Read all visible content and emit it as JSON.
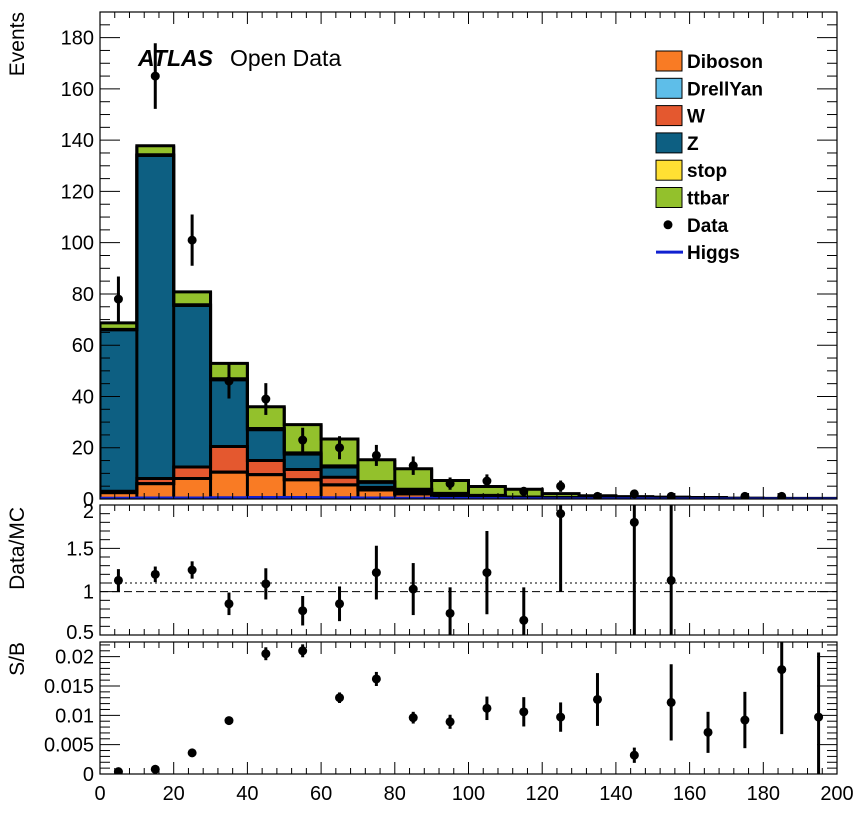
{
  "chart_data": [
    {
      "type": "bar",
      "stacked": true,
      "xlim": [
        0,
        200
      ],
      "ylim": [
        0,
        190
      ],
      "ylabel": "Events",
      "label_brand": "ATLAS",
      "label_text": "Open Data",
      "bin_width": 10,
      "bin_edges": [
        0,
        10,
        20,
        30,
        40,
        50,
        60,
        70,
        80,
        90,
        100,
        110,
        120,
        130,
        140,
        150,
        160,
        170,
        180,
        190,
        200
      ],
      "colors": {
        "Diboson": "#f97b24",
        "DrellYan": "#5ebee9",
        "W": "#e4582f",
        "Z": "#0d5f82",
        "stop": "#ffe033",
        "ttbar": "#93c12c",
        "Data": "#000000",
        "Higgs": "#1020d0"
      },
      "legend_placement": "top-right",
      "legend": [
        "Diboson",
        "DrellYan",
        "W",
        "Z",
        "stop",
        "ttbar",
        "Data",
        "Higgs"
      ],
      "series": [
        {
          "name": "Diboson",
          "values": [
            2.5,
            6,
            8,
            10.5,
            9.5,
            7.5,
            5.5,
            3.5,
            2,
            1.2,
            0.8,
            0.5,
            0.3,
            0.2,
            0.1,
            0.1,
            0.05,
            0.05,
            0.02,
            0.02
          ]
        },
        {
          "name": "DrellYan",
          "values": [
            0,
            0,
            0,
            0,
            0,
            0,
            0,
            0,
            0,
            0,
            0,
            0,
            0,
            0,
            0,
            0,
            0,
            0,
            0,
            0
          ]
        },
        {
          "name": "W",
          "values": [
            0.5,
            2,
            4.5,
            10,
            5.5,
            4,
            3,
            1,
            0.5,
            0.3,
            0.2,
            0.1,
            0.1,
            0,
            0,
            0,
            0,
            0,
            0,
            0
          ]
        },
        {
          "name": "Z",
          "values": [
            63,
            126,
            63,
            26,
            12,
            6,
            4,
            2,
            1,
            0.5,
            0.2,
            0.1,
            0.1,
            0.1,
            0,
            0,
            0,
            0,
            0,
            0
          ]
        },
        {
          "name": "stop",
          "values": [
            0.2,
            0.3,
            0.3,
            0.4,
            0.5,
            0.5,
            0.4,
            0.3,
            0.3,
            0.2,
            0.2,
            0.1,
            0.1,
            0.05,
            0.05,
            0.02,
            0.02,
            0,
            0,
            0
          ]
        },
        {
          "name": "ttbar",
          "values": [
            2.5,
            3.5,
            5,
            6,
            8.5,
            11,
            10.5,
            8.5,
            8,
            5,
            3.5,
            3,
            1.5,
            0.9,
            0.8,
            0.6,
            0.5,
            0.3,
            0.2,
            0.2
          ]
        },
        {
          "name": "Higgs",
          "type": "line",
          "values": [
            0.3,
            0.4,
            0.4,
            0.5,
            0.6,
            0.6,
            0.5,
            0.4,
            0.3,
            0.2,
            0.15,
            0.1,
            0.05,
            0.05,
            0.03,
            0.02,
            0.02,
            0.01,
            0.01,
            0.01
          ]
        },
        {
          "name": "Data",
          "type": "scatter",
          "x": [
            5,
            15,
            25,
            35,
            45,
            55,
            65,
            75,
            85,
            95,
            105,
            115,
            125,
            135,
            145,
            155,
            165,
            175,
            185,
            195
          ],
          "y": [
            78,
            165,
            101,
            46,
            39,
            23,
            20,
            17,
            13,
            6,
            7,
            3,
            5,
            1,
            2,
            1,
            0,
            1,
            1,
            0
          ],
          "yerr": [
            8.8,
            12.8,
            10,
            6.8,
            6.2,
            4.8,
            4.5,
            4.1,
            3.6,
            2.4,
            2.6,
            1.7,
            2.2,
            1,
            1.4,
            1,
            0,
            1,
            1,
            0
          ]
        }
      ],
      "yticks": [
        0,
        20,
        40,
        60,
        80,
        100,
        120,
        140,
        160,
        180
      ]
    },
    {
      "type": "scatter",
      "ylabel": "Data/MC",
      "xlim": [
        0,
        200
      ],
      "ylim": [
        0.5,
        2
      ],
      "yticks": [
        "0.5",
        "1",
        "1.5",
        "2"
      ],
      "reference_lines": [
        1.0,
        1.1
      ],
      "x": [
        5,
        15,
        25,
        35,
        45,
        55,
        65,
        75,
        85,
        95,
        105,
        115,
        125,
        145,
        155
      ],
      "y": [
        1.13,
        1.2,
        1.25,
        0.86,
        1.09,
        0.78,
        0.86,
        1.22,
        1.03,
        0.75,
        1.22,
        0.67,
        1.9,
        1.8,
        1.13
      ],
      "yerr": [
        0.13,
        0.09,
        0.1,
        0.13,
        0.18,
        0.17,
        0.2,
        0.31,
        0.3,
        0.3,
        0.48,
        0.38,
        0.9,
        1.8,
        1.13
      ]
    },
    {
      "type": "scatter",
      "ylabel": "S/B",
      "xlim": [
        0,
        200
      ],
      "ylim": [
        0,
        0.0225
      ],
      "yticks": [
        "0",
        "0.005",
        "0.01",
        "0.015",
        "0.02"
      ],
      "xticks": [
        "0",
        "20",
        "40",
        "60",
        "80",
        "100",
        "120",
        "140",
        "160",
        "180",
        "200"
      ],
      "x": [
        5,
        15,
        25,
        35,
        45,
        55,
        65,
        75,
        85,
        95,
        105,
        115,
        125,
        135,
        145,
        155,
        165,
        175,
        185,
        195
      ],
      "y": [
        0.0004,
        0.0008,
        0.0036,
        0.0091,
        0.0205,
        0.021,
        0.013,
        0.0162,
        0.0096,
        0.0089,
        0.0112,
        0.0106,
        0.0097,
        0.0127,
        0.0032,
        0.0122,
        0.0071,
        0.0092,
        0.0178,
        0.0097
      ],
      "yerr": [
        0.0001,
        0.0002,
        0.0003,
        0.0005,
        0.0011,
        0.0011,
        0.0009,
        0.0012,
        0.001,
        0.0012,
        0.002,
        0.0025,
        0.0025,
        0.0045,
        0.0013,
        0.0065,
        0.0035,
        0.0048,
        0.011,
        0.011
      ]
    }
  ]
}
